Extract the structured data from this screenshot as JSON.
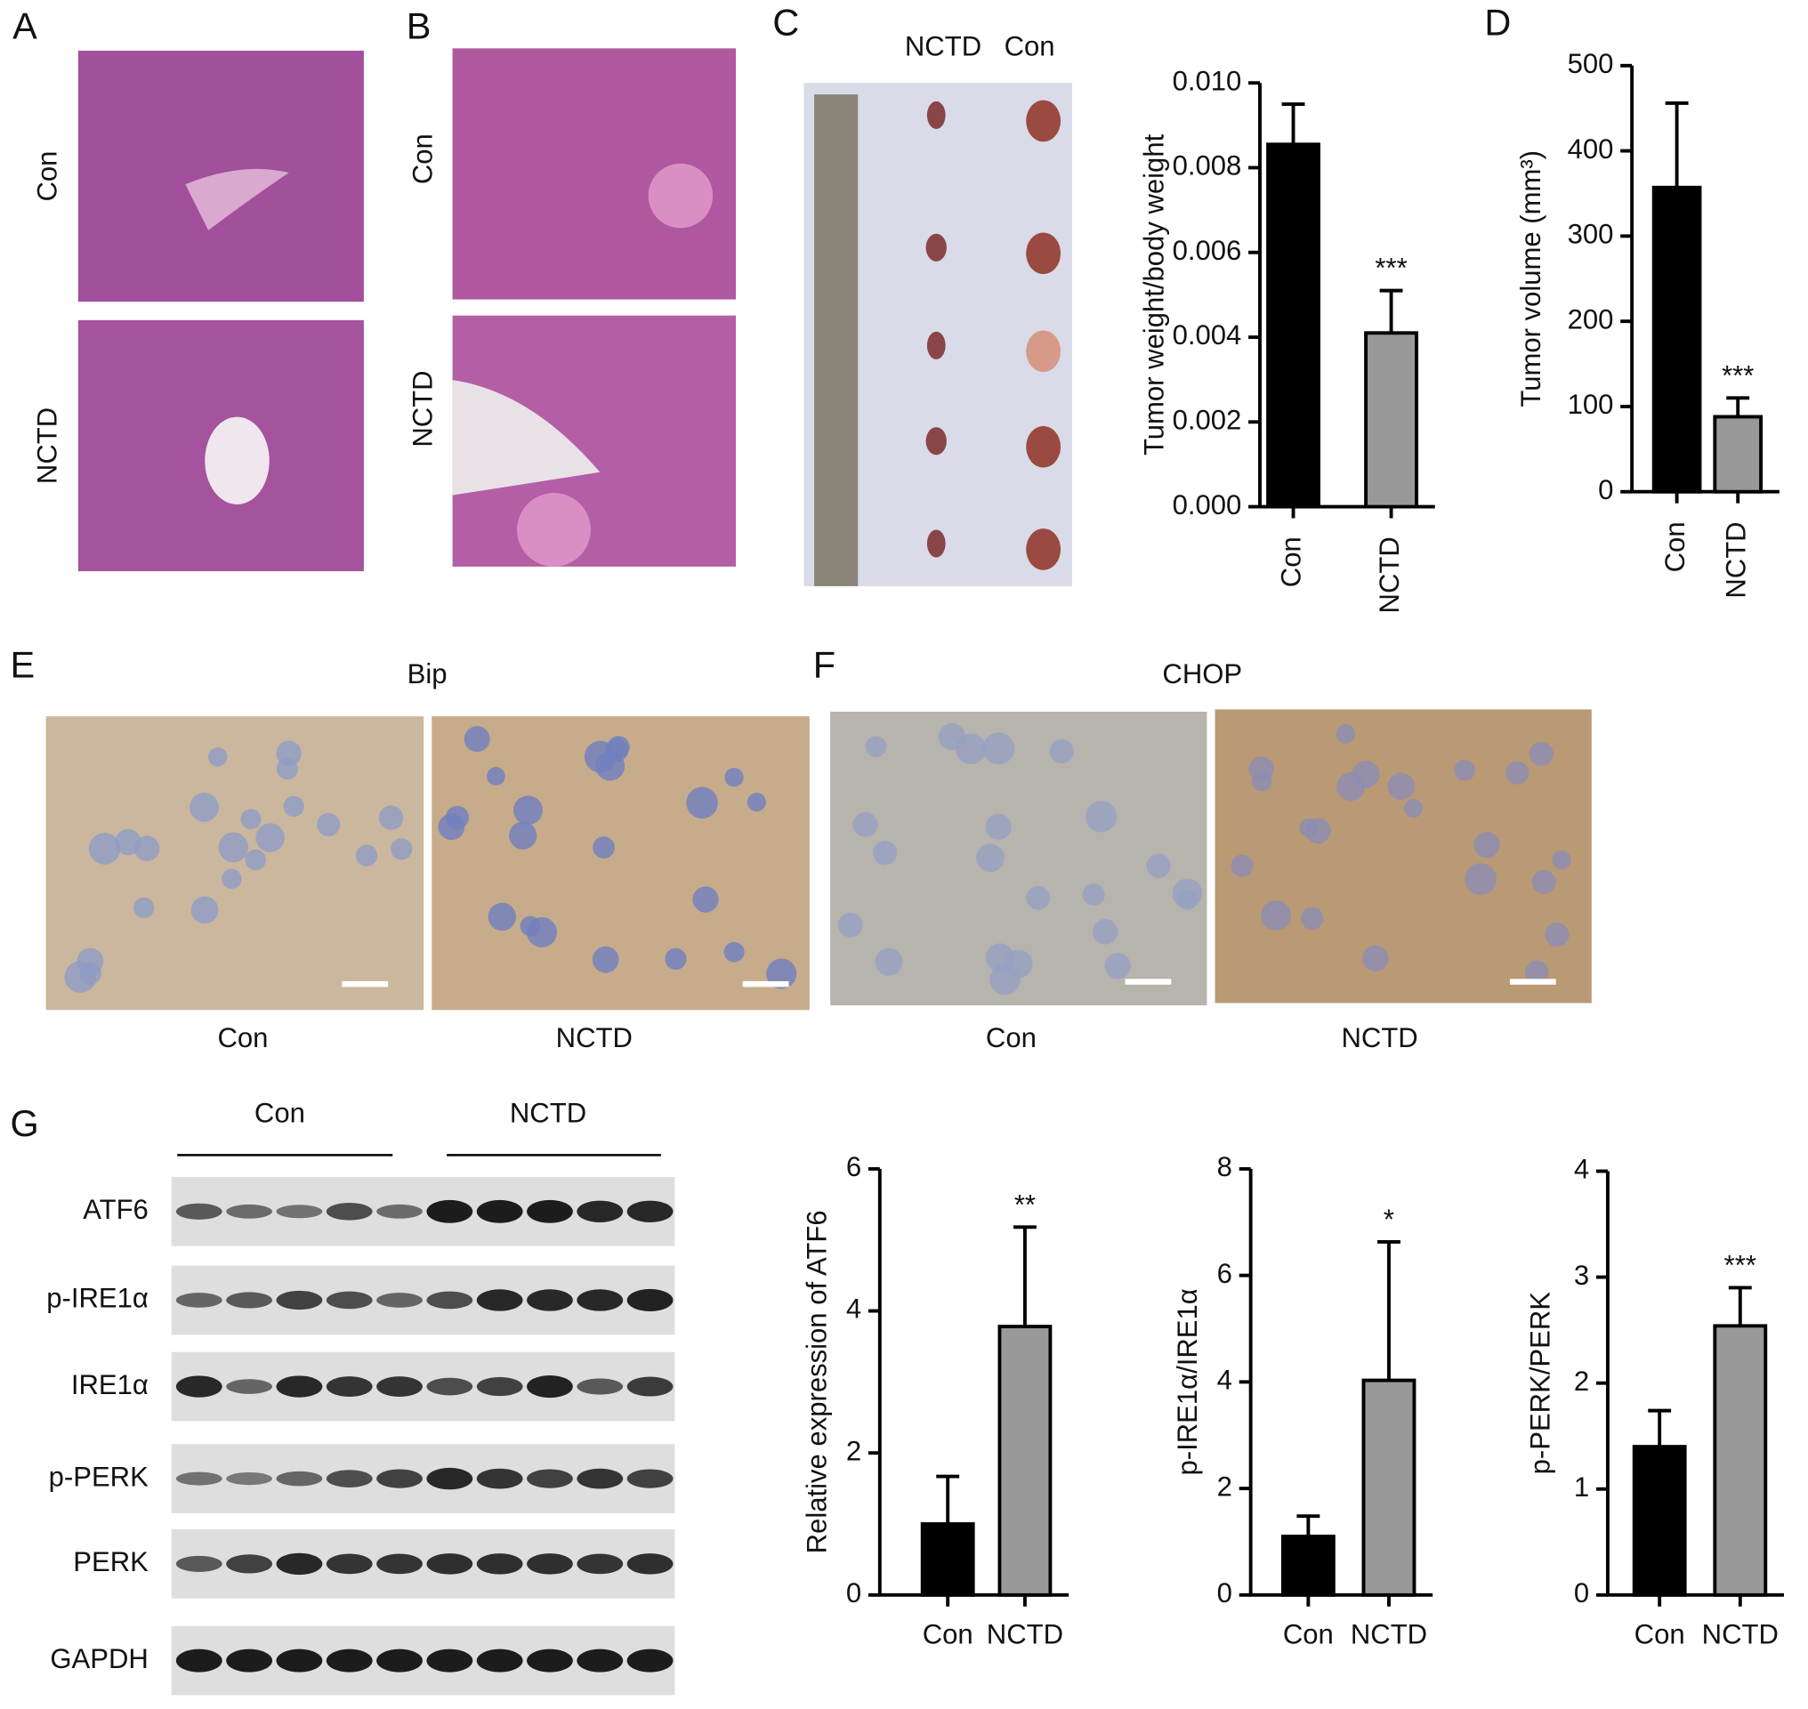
{
  "panels": {
    "A": {
      "letter": "A",
      "rows": [
        "Con",
        "NCTD"
      ]
    },
    "B": {
      "letter": "B",
      "rows": [
        "Con",
        "NCTD"
      ]
    },
    "C": {
      "letter": "C",
      "photo_headers": [
        "NCTD",
        "Con"
      ]
    },
    "D": {
      "letter": "D"
    },
    "E": {
      "letter": "E",
      "title": "Bip",
      "labels": [
        "Con",
        "NCTD"
      ]
    },
    "F": {
      "letter": "F",
      "title": "CHOP",
      "labels": [
        "Con",
        "NCTD"
      ]
    },
    "G": {
      "letter": "G",
      "groups": [
        "Con",
        "NCTD"
      ],
      "blots": [
        "ATF6",
        "p-IRE1α",
        "IRE1α",
        "p-PERK",
        "PERK",
        "GAPDH"
      ]
    }
  },
  "chart_data": [
    {
      "type": "bar",
      "ylabel": "Tumor weight/body weight",
      "categories": [
        "Con",
        "NCTD"
      ],
      "values": [
        0.00855,
        0.0041
      ],
      "errors": [
        0.00095,
        0.001
      ],
      "colors": [
        "#000000",
        "#999999"
      ],
      "annotation": "***",
      "ylim": [
        0,
        0.01
      ],
      "yticks": [
        {
          "value": 0,
          "label": "0.000"
        },
        {
          "value": 0.002,
          "label": "0.002"
        },
        {
          "value": 0.004,
          "label": "0.004"
        },
        {
          "value": 0.006,
          "label": "0.006"
        },
        {
          "value": 0.008,
          "label": "0.008"
        },
        {
          "value": 0.01,
          "label": "0.010"
        }
      ]
    },
    {
      "type": "bar",
      "ylabel": "Tumor volume (mm³)",
      "categories": [
        "Con",
        "NCTD"
      ],
      "values": [
        357,
        88
      ],
      "errors": [
        99,
        22
      ],
      "colors": [
        "#000000",
        "#999999"
      ],
      "annotation": "***",
      "ylim": [
        0,
        500
      ],
      "yticks": [
        0,
        100,
        200,
        300,
        400,
        500
      ]
    },
    {
      "type": "bar",
      "ylabel": "Relative expression of ATF6",
      "categories": [
        "Con",
        "NCTD"
      ],
      "values": [
        1.0,
        3.78
      ],
      "errors": [
        0.67,
        1.4
      ],
      "colors": [
        "#000000",
        "#999999"
      ],
      "annotation": "**",
      "ylim": [
        0,
        6
      ],
      "yticks": [
        0,
        2,
        4,
        6
      ]
    },
    {
      "type": "bar",
      "ylabel": "p-IRE1α/IRE1α",
      "categories": [
        "Con",
        "NCTD"
      ],
      "values": [
        1.1,
        4.03
      ],
      "errors": [
        0.38,
        2.6
      ],
      "colors": [
        "#000000",
        "#999999"
      ],
      "annotation": "*",
      "ylim": [
        0,
        8
      ],
      "yticks": [
        0,
        2,
        4,
        6,
        8
      ]
    },
    {
      "type": "bar",
      "ylabel": "p-PERK/PERK",
      "categories": [
        "Con",
        "NCTD"
      ],
      "values": [
        1.4,
        2.54
      ],
      "errors": [
        0.34,
        0.36
      ],
      "colors": [
        "#000000",
        "#999999"
      ],
      "annotation": "***",
      "ylim": [
        0,
        4
      ],
      "yticks": [
        0,
        1,
        2,
        3,
        4
      ]
    }
  ]
}
